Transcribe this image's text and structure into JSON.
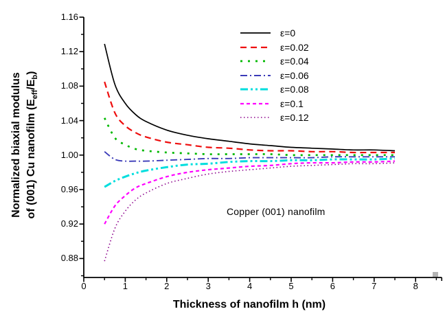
{
  "figure": {
    "annotation": "Copper (001) nanofilm",
    "xlabel": "Thickness of nanofilm h (nm)",
    "ylabel": {
      "line1": "Normalized biaxial modulus",
      "line2_pre": "of (001) Cu nanofilm (E",
      "sub1": "eff",
      "mid": "/E",
      "sub2": "b",
      "post": ")"
    }
  },
  "chart_data": {
    "type": "line",
    "title": "",
    "xlabel": "Thickness of nanofilm h (nm)",
    "ylabel": "Normalized biaxial modulus of (001) Cu nanofilm (Eeff/Eb)",
    "annotation": "Copper (001) nanofilm",
    "legend_position": "upper center",
    "grid": false,
    "xlim": [
      0,
      8.63
    ],
    "ylim": [
      0.858,
      1.16
    ],
    "x_ticks": [
      "0",
      "1",
      "2",
      "3",
      "4",
      "5",
      "6",
      "7",
      "8"
    ],
    "x_tick_values": [
      0,
      1,
      2,
      3,
      4,
      5,
      6,
      7,
      8
    ],
    "x_minor_tick_values": [
      0.5,
      1.5,
      2.5,
      3.5,
      4.5,
      5.5,
      6.5,
      7.5,
      8.5
    ],
    "y_ticks": [
      "0.88",
      "0.92",
      "0.96",
      "1.00",
      "1.04",
      "1.08",
      "1.12",
      "1.16"
    ],
    "y_tick_values": [
      0.88,
      0.92,
      0.96,
      1.0,
      1.04,
      1.08,
      1.12,
      1.16
    ],
    "y_minor_tick_values": [
      0.86,
      0.9,
      0.94,
      0.98,
      1.02,
      1.06,
      1.1,
      1.14
    ],
    "x": [
      0.5,
      0.75,
      1.0,
      1.25,
      1.5,
      2.0,
      2.5,
      3.0,
      3.5,
      4.0,
      4.5,
      5.0,
      5.5,
      6.0,
      6.5,
      7.0,
      7.5
    ],
    "series": [
      {
        "name": "ε=0",
        "color": "#000000",
        "dash": "",
        "width": 1.7,
        "values": [
          1.129,
          1.082,
          1.06,
          1.047,
          1.039,
          1.029,
          1.023,
          1.019,
          1.016,
          1.013,
          1.011,
          1.009,
          1.008,
          1.007,
          1.006,
          1.006,
          1.005
        ]
      },
      {
        "name": "ε=0.02",
        "color": "#ee0d0d",
        "dash": "9 6",
        "width": 2.2,
        "values": [
          1.085,
          1.049,
          1.034,
          1.026,
          1.021,
          1.015,
          1.012,
          1.009,
          1.008,
          1.006,
          1.005,
          1.005,
          1.004,
          1.004,
          1.003,
          1.003,
          1.003
        ]
      },
      {
        "name": "ε=0.04",
        "color": "#00b800",
        "dash": "3 8",
        "width": 2.7,
        "values": [
          1.043,
          1.02,
          1.012,
          1.007,
          1.005,
          1.003,
          1.002,
          1.001,
          1.001,
          1.001,
          1.001,
          1.0,
          1.0,
          1.0,
          1.0,
          1.0,
          1.0
        ]
      },
      {
        "name": "ε=0.06",
        "color": "#3a3ab8",
        "dash": "10 4 2 4",
        "width": 1.9,
        "values": [
          1.004,
          0.995,
          0.993,
          0.993,
          0.993,
          0.994,
          0.995,
          0.996,
          0.996,
          0.997,
          0.997,
          0.997,
          0.997,
          0.998,
          0.998,
          0.998,
          0.998
        ]
      },
      {
        "name": "ε=0.08",
        "color": "#00dede",
        "dash": "11 4 3 4 3 4",
        "width": 3.0,
        "values": [
          0.963,
          0.97,
          0.975,
          0.979,
          0.982,
          0.986,
          0.989,
          0.99,
          0.992,
          0.993,
          0.993,
          0.994,
          0.994,
          0.995,
          0.995,
          0.995,
          0.996
        ]
      },
      {
        "name": "ε=0.1",
        "color": "#ff00ff",
        "dash": "5 4",
        "width": 2.2,
        "values": [
          0.92,
          0.941,
          0.953,
          0.962,
          0.967,
          0.975,
          0.98,
          0.983,
          0.985,
          0.987,
          0.988,
          0.99,
          0.991,
          0.991,
          0.992,
          0.992,
          0.993
        ]
      },
      {
        "name": "ε=0.12",
        "color": "#8b008b",
        "dash": "1.5 3.5",
        "width": 1.6,
        "values": [
          0.877,
          0.915,
          0.935,
          0.948,
          0.956,
          0.967,
          0.973,
          0.978,
          0.981,
          0.983,
          0.985,
          0.987,
          0.988,
          0.989,
          0.99,
          0.99,
          0.991
        ]
      }
    ]
  }
}
